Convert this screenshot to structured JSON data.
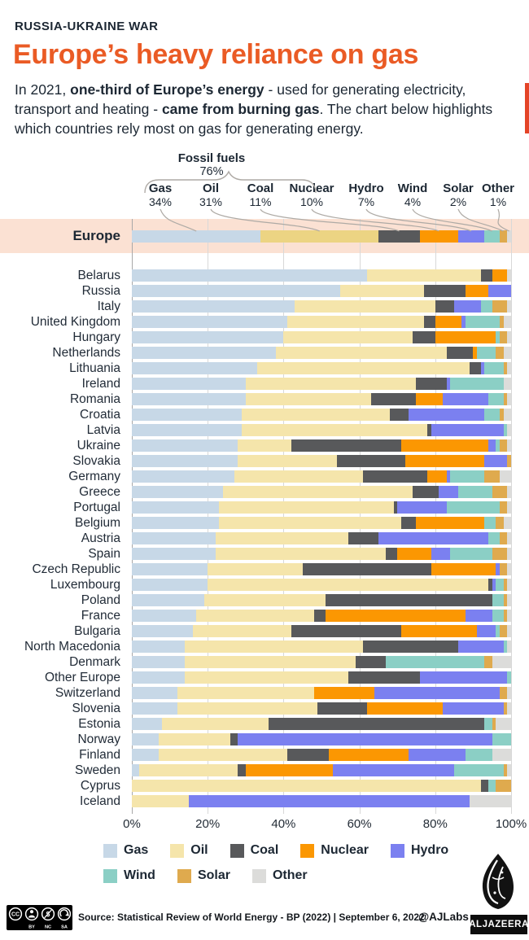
{
  "header": {
    "eyebrow": "RUSSIA-UKRAINE WAR",
    "title": "Europe’s heavy reliance on gas",
    "intro_parts": [
      {
        "text": "In 2021, ",
        "bold": false
      },
      {
        "text": "one-third of Europe’s energy",
        "bold": true
      },
      {
        "text": " - used for generating electricity, transport and heating - ",
        "bold": false
      },
      {
        "text": "came from burning gas",
        "bold": true
      },
      {
        "text": ". The chart below highlights which countries rely most on gas for generating energy.",
        "bold": false
      }
    ]
  },
  "callouts": {
    "fossil": {
      "label": "Fossil fuels",
      "value": "76%"
    },
    "items": [
      {
        "label": "Gas",
        "value": "34%"
      },
      {
        "label": "Oil",
        "value": "31%"
      },
      {
        "label": "Coal",
        "value": "11%"
      },
      {
        "label": "Nuclear",
        "value": "10%"
      },
      {
        "label": "Hydro",
        "value": "7%"
      },
      {
        "label": "Wind",
        "value": "4%"
      },
      {
        "label": "Solar",
        "value": "2%"
      },
      {
        "label": "Other",
        "value": "1%"
      }
    ]
  },
  "chart_data": {
    "type": "bar",
    "subtype": "horizontal-stacked-100",
    "unit": "%",
    "xlim": [
      0,
      100
    ],
    "x_ticks": [
      "0%",
      "20%",
      "40%",
      "60%",
      "80%",
      "100%"
    ],
    "grid": "vertical",
    "series_names": [
      "Gas",
      "Oil",
      "Coal",
      "Nuclear",
      "Hydro",
      "Wind",
      "Solar",
      "Other"
    ],
    "series_colors": [
      "#c7d8e7",
      "#f5e5ab",
      "#58595b",
      "#fb9702",
      "#7b80f0",
      "#8bcfc5",
      "#dfaa4e",
      "#dcdcda"
    ],
    "europe": {
      "label": "Europe",
      "values": [
        34,
        31,
        11,
        10,
        7,
        4,
        2,
        1
      ],
      "oil_color": "#ecd483"
    },
    "countries": [
      {
        "name": "Belarus",
        "values": [
          62,
          30,
          3,
          4,
          0,
          0,
          0,
          1
        ]
      },
      {
        "name": "Russia",
        "values": [
          55,
          22,
          11,
          6,
          6,
          0,
          0,
          0
        ]
      },
      {
        "name": "Italy",
        "values": [
          43,
          37,
          5,
          0,
          7,
          3,
          4,
          1
        ]
      },
      {
        "name": "United Kingdom",
        "values": [
          41,
          36,
          3,
          7,
          1,
          9,
          1,
          2
        ]
      },
      {
        "name": "Hungary",
        "values": [
          40,
          34,
          6,
          16,
          0,
          1,
          2,
          1
        ]
      },
      {
        "name": "Netherlands",
        "values": [
          38,
          45,
          7,
          1,
          0,
          5,
          2,
          2
        ]
      },
      {
        "name": "Lithuania",
        "values": [
          33,
          56,
          3,
          0,
          1,
          5,
          1,
          1
        ]
      },
      {
        "name": "Ireland",
        "values": [
          30,
          45,
          8,
          0,
          1,
          14,
          0,
          2
        ]
      },
      {
        "name": "Romania",
        "values": [
          30,
          33,
          12,
          7,
          12,
          4,
          1,
          1
        ]
      },
      {
        "name": "Croatia",
        "values": [
          29,
          39,
          5,
          0,
          20,
          4,
          1,
          2
        ]
      },
      {
        "name": "Latvia",
        "values": [
          29,
          49,
          1,
          0,
          19,
          1,
          0,
          1
        ]
      },
      {
        "name": "Ukraine",
        "values": [
          28,
          14,
          29,
          23,
          2,
          1,
          2,
          1
        ]
      },
      {
        "name": "Slovakia",
        "values": [
          28,
          26,
          18,
          21,
          6,
          0,
          1,
          0
        ]
      },
      {
        "name": "Germany",
        "values": [
          27,
          34,
          17,
          5,
          1,
          9,
          4,
          3
        ]
      },
      {
        "name": "Greece",
        "values": [
          24,
          50,
          7,
          0,
          5,
          9,
          4,
          1
        ]
      },
      {
        "name": "Portugal",
        "values": [
          23,
          46,
          1,
          0,
          13,
          14,
          2,
          1
        ]
      },
      {
        "name": "Belgium",
        "values": [
          23,
          48,
          4,
          18,
          0,
          3,
          2,
          2
        ]
      },
      {
        "name": "Austria",
        "values": [
          22,
          35,
          8,
          0,
          29,
          3,
          2,
          1
        ]
      },
      {
        "name": "Spain",
        "values": [
          22,
          45,
          3,
          9,
          5,
          11,
          4,
          1
        ]
      },
      {
        "name": "Czech Republic",
        "values": [
          20,
          25,
          34,
          17,
          1,
          0,
          2,
          1
        ]
      },
      {
        "name": "Luxembourg",
        "values": [
          20,
          74,
          1,
          0,
          1,
          2,
          1,
          1
        ]
      },
      {
        "name": "Poland",
        "values": [
          19,
          32,
          44,
          0,
          0,
          3,
          1,
          1
        ]
      },
      {
        "name": "France",
        "values": [
          17,
          31,
          3,
          37,
          7,
          3,
          1,
          1
        ]
      },
      {
        "name": "Bulgaria",
        "values": [
          16,
          26,
          29,
          20,
          5,
          1,
          2,
          1
        ]
      },
      {
        "name": "North Macedonia",
        "values": [
          14,
          47,
          25,
          0,
          12,
          1,
          0,
          1
        ]
      },
      {
        "name": "Denmark",
        "values": [
          14,
          45,
          8,
          0,
          0,
          26,
          2,
          5
        ]
      },
      {
        "name": "Other Europe",
        "values": [
          14,
          43,
          19,
          0,
          23,
          1,
          0,
          0
        ]
      },
      {
        "name": "Switzerland",
        "values": [
          12,
          36,
          0,
          16,
          33,
          0,
          2,
          1
        ]
      },
      {
        "name": "Slovenia",
        "values": [
          12,
          37,
          13,
          20,
          16,
          0,
          1,
          1
        ]
      },
      {
        "name": "Estonia",
        "values": [
          8,
          28,
          57,
          0,
          0,
          2,
          1,
          4
        ]
      },
      {
        "name": "Norway",
        "values": [
          7,
          19,
          2,
          0,
          67,
          5,
          0,
          0
        ]
      },
      {
        "name": "Finland",
        "values": [
          7,
          34,
          11,
          21,
          15,
          7,
          0,
          5
        ]
      },
      {
        "name": "Sweden",
        "values": [
          2,
          26,
          2,
          23,
          32,
          13,
          1,
          1
        ]
      },
      {
        "name": "Cyprus",
        "values": [
          0,
          92,
          2,
          0,
          0,
          2,
          4,
          0
        ]
      },
      {
        "name": "Iceland",
        "values": [
          0,
          15,
          0,
          0,
          74,
          0,
          0,
          11
        ]
      }
    ]
  },
  "legend": {
    "rows": [
      [
        "Gas",
        "Oil",
        "Coal",
        "Nuclear",
        "Hydro"
      ],
      [
        "Wind",
        "Solar",
        "Other"
      ]
    ]
  },
  "footer": {
    "cc_labels": [
      "BY",
      "NC",
      "SA"
    ],
    "source": "Source: Statistical Review of World Energy - BP (2022) | September 6, 2022",
    "handle": "@AJLabs",
    "logo_text": "ALJAZEERA"
  },
  "theme": {
    "accent": "#ea5b25",
    "europe_band": "#fbe1d3",
    "red_strip": "#e44427",
    "ink": "#1c2733",
    "gridline": "#d8d8d8"
  }
}
